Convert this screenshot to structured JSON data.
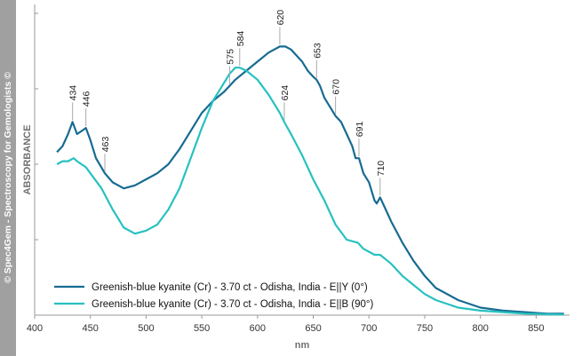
{
  "watermark": "© Spec4Gem - Spectroscopy for Gemologists ©",
  "chart_data": {
    "type": "line",
    "xlabel": "nm",
    "ylabel": "ABSORBANCE",
    "xlim": [
      400,
      880
    ],
    "ylim": [
      0,
      1
    ],
    "x_ticks": [
      400,
      450,
      500,
      550,
      600,
      650,
      700,
      750,
      800,
      850
    ],
    "y_ticks": [
      0.25,
      0.5,
      0.75,
      1.0
    ],
    "y_tick_labels_shown": false,
    "grid": false,
    "legend_position": "bottom-left",
    "series": [
      {
        "name": "Greenish-blue kyanite (Cr) - 3.70 ct - Odisha, India - E||Y (0°)",
        "color": "#176b92",
        "x": [
          420,
          425,
          430,
          434,
          438,
          442,
          446,
          450,
          455,
          463,
          470,
          480,
          490,
          500,
          510,
          520,
          530,
          540,
          550,
          560,
          570,
          575,
          580,
          590,
          600,
          610,
          620,
          625,
          630,
          640,
          645,
          650,
          653,
          656,
          660,
          665,
          670,
          675,
          680,
          685,
          688,
          691,
          695,
          700,
          705,
          707,
          710,
          715,
          720,
          730,
          740,
          750,
          760,
          780,
          800,
          820,
          840,
          860,
          875
        ],
        "values": [
          0.54,
          0.56,
          0.6,
          0.64,
          0.6,
          0.61,
          0.62,
          0.58,
          0.52,
          0.47,
          0.44,
          0.42,
          0.43,
          0.45,
          0.47,
          0.5,
          0.55,
          0.61,
          0.67,
          0.71,
          0.74,
          0.76,
          0.78,
          0.81,
          0.84,
          0.87,
          0.89,
          0.89,
          0.88,
          0.84,
          0.81,
          0.79,
          0.78,
          0.76,
          0.72,
          0.69,
          0.66,
          0.64,
          0.6,
          0.56,
          0.52,
          0.52,
          0.47,
          0.44,
          0.38,
          0.37,
          0.39,
          0.35,
          0.31,
          0.24,
          0.18,
          0.13,
          0.09,
          0.05,
          0.025,
          0.015,
          0.01,
          0.005,
          0.005
        ]
      },
      {
        "name": "Greenish-blue kyanite (Cr) - 3.70 ct - Odisha, India - E||B (90°)",
        "color": "#27c1c0",
        "x": [
          420,
          425,
          430,
          435,
          438,
          442,
          446,
          450,
          460,
          470,
          480,
          490,
          500,
          510,
          520,
          530,
          540,
          550,
          560,
          570,
          575,
          580,
          584,
          590,
          600,
          610,
          620,
          624,
          630,
          640,
          650,
          660,
          670,
          680,
          690,
          695,
          700,
          705,
          710,
          720,
          730,
          740,
          750,
          760,
          780,
          800,
          820,
          840,
          860,
          875
        ],
        "values": [
          0.5,
          0.51,
          0.51,
          0.52,
          0.51,
          0.5,
          0.49,
          0.47,
          0.42,
          0.35,
          0.29,
          0.27,
          0.28,
          0.3,
          0.35,
          0.42,
          0.52,
          0.62,
          0.71,
          0.77,
          0.8,
          0.82,
          0.82,
          0.81,
          0.78,
          0.73,
          0.67,
          0.64,
          0.6,
          0.53,
          0.45,
          0.38,
          0.3,
          0.25,
          0.24,
          0.22,
          0.21,
          0.2,
          0.2,
          0.17,
          0.13,
          0.1,
          0.07,
          0.05,
          0.025,
          0.015,
          0.01,
          0.005,
          0.003,
          0.002
        ]
      }
    ],
    "annotations": [
      {
        "label": "434",
        "series": 0,
        "x": 434
      },
      {
        "label": "446",
        "series": 0,
        "x": 446
      },
      {
        "label": "463",
        "series": 0,
        "x": 463
      },
      {
        "label": "575",
        "series": 0,
        "x": 575
      },
      {
        "label": "620",
        "series": 0,
        "x": 620
      },
      {
        "label": "653",
        "series": 0,
        "x": 653
      },
      {
        "label": "670",
        "series": 0,
        "x": 670
      },
      {
        "label": "691",
        "series": 0,
        "x": 691
      },
      {
        "label": "710",
        "series": 0,
        "x": 710
      },
      {
        "label": "584",
        "series": 1,
        "x": 584
      },
      {
        "label": "624",
        "series": 1,
        "x": 624
      }
    ]
  }
}
